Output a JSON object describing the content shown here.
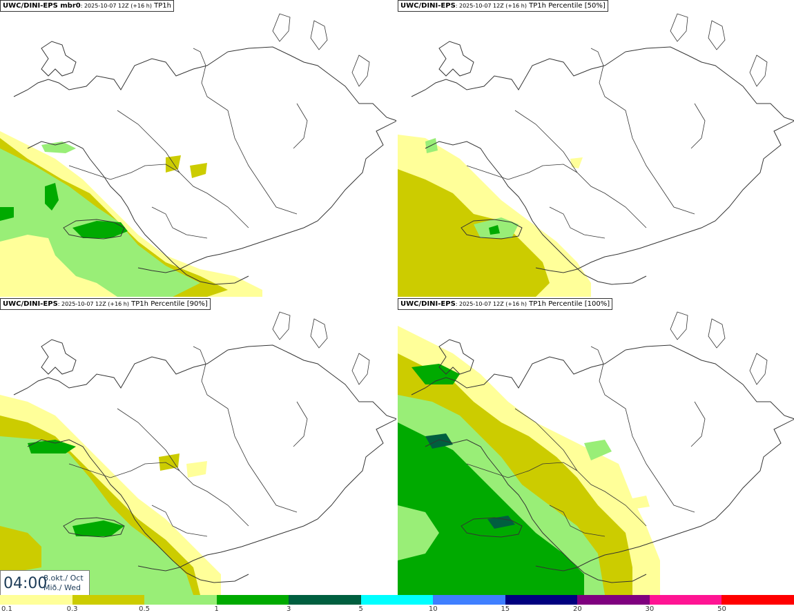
{
  "panels": [
    {
      "model": "UWC/DINI-EPS mbr0",
      "date": ": 2025-10-07 12Z (+16 h)",
      "field": "TP1h"
    },
    {
      "model": "UWC/DINI-EPS",
      "date": ": 2025-10-07 12Z (+16 h)",
      "field": "TP1h Percentile [50%]"
    },
    {
      "model": "UWC/DINI-EPS",
      "date": ": 2025-10-07 12Z (+16 h)",
      "field": "TP1h Percentile [90%]"
    },
    {
      "model": "UWC/DINI-EPS",
      "date": ": 2025-10-07 12Z (+16 h)",
      "field": "TP1h Percentile [100%]"
    }
  ],
  "valid_time": {
    "hour": "04:00",
    "date_line1": "8.okt./ Oct",
    "date_line2": "Mið./ Wed"
  },
  "legend": {
    "ticks": [
      "0.1",
      "0.3",
      "0.5",
      "1",
      "3",
      "5",
      "10",
      "15",
      "20",
      "30",
      "50"
    ],
    "colors": [
      "#ffff99",
      "#cccc00",
      "#99ee77",
      "#00aa00",
      "#005f3f",
      "#00ffff",
      "#3f7fff",
      "#00007f",
      "#7f007f",
      "#ff1493",
      "#ff0000"
    ]
  },
  "colors": {
    "c01": "#ffff99",
    "c03": "#cccc00",
    "c05": "#99ee77",
    "c1": "#00aa00",
    "c3": "#005f3f"
  }
}
